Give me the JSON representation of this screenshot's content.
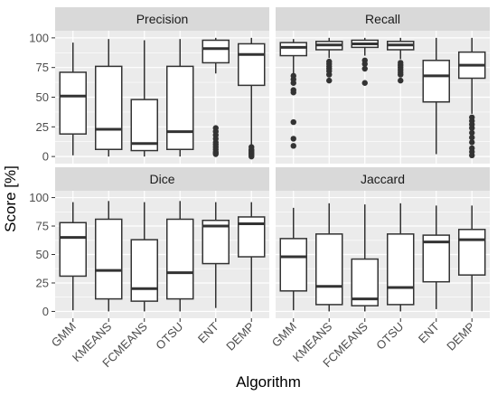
{
  "chart_data": {
    "type": "boxplot",
    "facet_layout": "2x2 grid",
    "xlabel": "Algorithm",
    "ylabel": "Score [%]",
    "categories": [
      "GMM",
      "KMEANS",
      "FCMEANS",
      "OTSU",
      "ENT",
      "DEMP"
    ],
    "ylim": [
      0,
      100
    ],
    "yticks": [
      0,
      25,
      50,
      75,
      100
    ],
    "grid": true,
    "legend": "none",
    "colors": {
      "panel_bg": "#ebebeb",
      "strip_bg": "#d9d9d9",
      "grid": "#ffffff",
      "box_fill": "#ffffff",
      "box_line": "#333333"
    },
    "panels": [
      {
        "title": "Precision",
        "boxes": [
          {
            "category": "GMM",
            "whisker_low": 1,
            "q1": 19,
            "median": 51,
            "q3": 71,
            "whisker_high": 96,
            "outliers": []
          },
          {
            "category": "KMEANS",
            "whisker_low": 0,
            "q1": 6,
            "median": 23,
            "q3": 76,
            "whisker_high": 99,
            "outliers": []
          },
          {
            "category": "FCMEANS",
            "whisker_low": 0,
            "q1": 5,
            "median": 11,
            "q3": 48,
            "whisker_high": 98,
            "outliers": []
          },
          {
            "category": "OTSU",
            "whisker_low": 0,
            "q1": 6,
            "median": 21,
            "q3": 76,
            "whisker_high": 99,
            "outliers": []
          },
          {
            "category": "ENT",
            "whisker_low": 70,
            "q1": 79,
            "median": 91,
            "q3": 98,
            "whisker_high": 100,
            "outliers": [
              24,
              21,
              18,
              15,
              12,
              10,
              8,
              6,
              4,
              3,
              2
            ]
          },
          {
            "category": "DEMP",
            "whisker_low": 9,
            "q1": 60,
            "median": 86,
            "q3": 95,
            "whisker_high": 100,
            "outliers": [
              8,
              6,
              5,
              4,
              3,
              2,
              1,
              0
            ]
          }
        ]
      },
      {
        "title": "Recall",
        "boxes": [
          {
            "category": "GMM",
            "whisker_low": 70,
            "q1": 85,
            "median": 92,
            "q3": 96,
            "whisker_high": 99,
            "outliers": [
              68,
              65,
              62,
              56,
              54,
              29,
              15,
              9
            ]
          },
          {
            "category": "KMEANS",
            "whisker_low": 83,
            "q1": 90,
            "median": 94,
            "q3": 97,
            "whisker_high": 100,
            "outliers": [
              80,
              78,
              76,
              74,
              72,
              69,
              64
            ]
          },
          {
            "category": "FCMEANS",
            "whisker_low": 85,
            "q1": 92,
            "median": 95,
            "q3": 98,
            "whisker_high": 100,
            "outliers": [
              81,
              78,
              74,
              62
            ]
          },
          {
            "category": "OTSU",
            "whisker_low": 82,
            "q1": 90,
            "median": 94,
            "q3": 97,
            "whisker_high": 100,
            "outliers": [
              79,
              77,
              75,
              73,
              71,
              69,
              64
            ]
          },
          {
            "category": "ENT",
            "whisker_low": 2,
            "q1": 46,
            "median": 68,
            "q3": 81,
            "whisker_high": 100,
            "outliers": []
          },
          {
            "category": "DEMP",
            "whisker_low": 36,
            "q1": 66,
            "median": 77,
            "q3": 88,
            "whisker_high": 100,
            "outliers": [
              33,
              30,
              27,
              24,
              20,
              16,
              12,
              7,
              4,
              1
            ]
          }
        ]
      },
      {
        "title": "Dice",
        "boxes": [
          {
            "category": "GMM",
            "whisker_low": 1,
            "q1": 31,
            "median": 65,
            "q3": 78,
            "whisker_high": 96,
            "outliers": []
          },
          {
            "category": "KMEANS",
            "whisker_low": 0,
            "q1": 11,
            "median": 36,
            "q3": 81,
            "whisker_high": 97,
            "outliers": []
          },
          {
            "category": "FCMEANS",
            "whisker_low": 0,
            "q1": 9,
            "median": 20,
            "q3": 63,
            "whisker_high": 96,
            "outliers": []
          },
          {
            "category": "OTSU",
            "whisker_low": 0,
            "q1": 11,
            "median": 34,
            "q3": 81,
            "whisker_high": 97,
            "outliers": []
          },
          {
            "category": "ENT",
            "whisker_low": 3,
            "q1": 42,
            "median": 75,
            "q3": 80,
            "whisker_high": 96,
            "outliers": []
          },
          {
            "category": "DEMP",
            "whisker_low": 0,
            "q1": 48,
            "median": 77,
            "q3": 83,
            "whisker_high": 96,
            "outliers": []
          }
        ]
      },
      {
        "title": "Jaccard",
        "boxes": [
          {
            "category": "GMM",
            "whisker_low": 1,
            "q1": 18,
            "median": 48,
            "q3": 64,
            "whisker_high": 91,
            "outliers": []
          },
          {
            "category": "KMEANS",
            "whisker_low": 0,
            "q1": 6,
            "median": 22,
            "q3": 68,
            "whisker_high": 95,
            "outliers": []
          },
          {
            "category": "FCMEANS",
            "whisker_low": 0,
            "q1": 5,
            "median": 11,
            "q3": 46,
            "whisker_high": 94,
            "outliers": []
          },
          {
            "category": "OTSU",
            "whisker_low": 0,
            "q1": 6,
            "median": 21,
            "q3": 68,
            "whisker_high": 95,
            "outliers": []
          },
          {
            "category": "ENT",
            "whisker_low": 2,
            "q1": 26,
            "median": 61,
            "q3": 67,
            "whisker_high": 93,
            "outliers": []
          },
          {
            "category": "DEMP",
            "whisker_low": 0,
            "q1": 32,
            "median": 63,
            "q3": 72,
            "whisker_high": 93,
            "outliers": []
          }
        ]
      }
    ]
  }
}
